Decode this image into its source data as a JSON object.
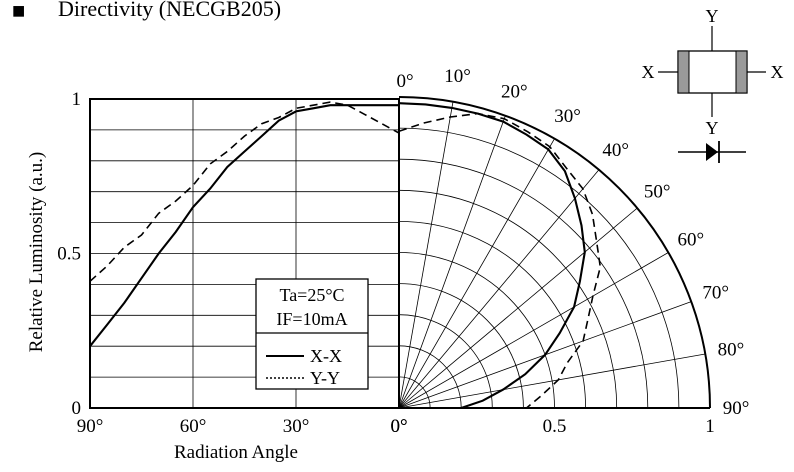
{
  "header": {
    "bullet": "■",
    "title": "Directivity (NECGB205)"
  },
  "chart_data": {
    "type": "line",
    "title": "Directivity (NECGB205)",
    "xlabel": "Radiation Angle",
    "ylabel": "Relative Luminosity (a.u.)",
    "rect_panel": {
      "x_ticks": [
        90,
        60,
        30,
        0
      ],
      "x_tick_labels": [
        "90°",
        "60°",
        "30°",
        "0°"
      ],
      "y_ticks": [
        0,
        0.5,
        1
      ],
      "y_tick_labels": [
        "0",
        "0.5",
        "1"
      ],
      "xlim": [
        90,
        0
      ],
      "ylim": [
        0,
        1
      ],
      "grid": true
    },
    "polar_panel": {
      "angle_labels": [
        "0°",
        "10°",
        "20°",
        "30°",
        "40°",
        "50°",
        "60°",
        "70°",
        "80°",
        "90°"
      ],
      "radius_labels": [
        "0°",
        "0.5",
        "1"
      ],
      "grid": true
    },
    "conditions": [
      "Ta=25°C",
      "IF=10mA"
    ],
    "legend": {
      "position": "bottom-left of the left panel",
      "entries": [
        "X-X",
        "Y-Y"
      ]
    },
    "series": [
      {
        "name": "X-X",
        "style": "solid",
        "x": [
          0,
          5,
          10,
          15,
          20,
          25,
          30,
          35,
          40,
          45,
          50,
          55,
          60,
          65,
          70,
          75,
          80,
          85,
          90
        ],
        "values": [
          0.98,
          0.98,
          0.98,
          0.98,
          0.98,
          0.97,
          0.96,
          0.93,
          0.88,
          0.83,
          0.78,
          0.71,
          0.65,
          0.57,
          0.5,
          0.42,
          0.34,
          0.27,
          0.2
        ]
      },
      {
        "name": "Y-Y",
        "style": "dashed",
        "x": [
          0,
          5,
          10,
          15,
          20,
          25,
          30,
          35,
          40,
          45,
          50,
          55,
          60,
          65,
          70,
          75,
          80,
          85,
          90
        ],
        "values": [
          0.89,
          0.92,
          0.95,
          0.98,
          0.99,
          0.98,
          0.97,
          0.94,
          0.92,
          0.88,
          0.83,
          0.79,
          0.72,
          0.67,
          0.63,
          0.56,
          0.52,
          0.46,
          0.41
        ]
      }
    ]
  },
  "package_icon": {
    "axis_y": "Y",
    "axis_x": "X"
  }
}
